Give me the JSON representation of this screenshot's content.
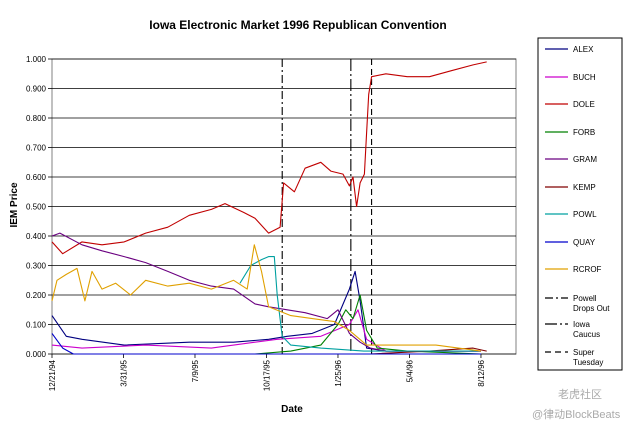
{
  "chart_data": {
    "type": "line",
    "title": "Iowa Electronic Market 1996 Republican Convention",
    "xlabel": "Date",
    "ylabel": "IEM Price",
    "ylim": [
      0,
      1.0
    ],
    "y_ticks": [
      "0.000",
      "0.100",
      "0.200",
      "0.300",
      "0.400",
      "0.500",
      "0.600",
      "0.700",
      "0.800",
      "0.900",
      "1.000"
    ],
    "x_range": [
      "1994-12-21",
      "1996-09-30"
    ],
    "x_ticks": [
      {
        "label": "12/21/94",
        "date": "1994-12-21"
      },
      {
        "label": "3/31/95",
        "date": "1995-03-31"
      },
      {
        "label": "7/9/95",
        "date": "1995-07-09"
      },
      {
        "label": "10/17/95",
        "date": "1995-10-17"
      },
      {
        "label": "1/25/96",
        "date": "1996-01-25"
      },
      {
        "label": "5/4/96",
        "date": "1996-05-04"
      },
      {
        "label": "8/12/96",
        "date": "1996-08-12"
      }
    ],
    "grid": "horizontal",
    "legend_position": "right",
    "series": [
      {
        "name": "ALEX",
        "color": "#000080",
        "points": [
          [
            "1994-12-21",
            0.13
          ],
          [
            "1995-01-10",
            0.06
          ],
          [
            "1995-02-01",
            0.05
          ],
          [
            "1995-04-01",
            0.03
          ],
          [
            "1995-07-01",
            0.04
          ],
          [
            "1995-09-01",
            0.04
          ],
          [
            "1995-10-20",
            0.05
          ],
          [
            "1995-11-15",
            0.06
          ],
          [
            "1995-12-20",
            0.07
          ],
          [
            "1996-01-20",
            0.1
          ],
          [
            "1996-02-10",
            0.22
          ],
          [
            "1996-02-18",
            0.28
          ],
          [
            "1996-02-25",
            0.18
          ],
          [
            "1996-03-05",
            0.02
          ],
          [
            "1996-04-01",
            0.01
          ],
          [
            "1996-08-12",
            0.01
          ]
        ]
      },
      {
        "name": "BUCH",
        "color": "#cc00cc",
        "points": [
          [
            "1994-12-21",
            0.03
          ],
          [
            "1995-02-01",
            0.02
          ],
          [
            "1995-05-01",
            0.03
          ],
          [
            "1995-08-01",
            0.02
          ],
          [
            "1995-10-01",
            0.04
          ],
          [
            "1995-11-01",
            0.05
          ],
          [
            "1996-01-01",
            0.06
          ],
          [
            "1996-02-10",
            0.1
          ],
          [
            "1996-02-22",
            0.15
          ],
          [
            "1996-03-05",
            0.05
          ],
          [
            "1996-04-01",
            0.01
          ],
          [
            "1996-08-12",
            0.01
          ]
        ]
      },
      {
        "name": "DOLE",
        "color": "#c00000",
        "points": [
          [
            "1994-12-21",
            0.38
          ],
          [
            "1995-01-05",
            0.34
          ],
          [
            "1995-02-01",
            0.38
          ],
          [
            "1995-03-01",
            0.37
          ],
          [
            "1995-04-01",
            0.38
          ],
          [
            "1995-05-01",
            0.41
          ],
          [
            "1995-06-01",
            0.43
          ],
          [
            "1995-07-01",
            0.47
          ],
          [
            "1995-08-01",
            0.49
          ],
          [
            "1995-08-20",
            0.51
          ],
          [
            "1995-09-15",
            0.48
          ],
          [
            "1995-10-01",
            0.46
          ],
          [
            "1995-10-20",
            0.41
          ],
          [
            "1995-11-05",
            0.43
          ],
          [
            "1995-11-10",
            0.58
          ],
          [
            "1995-11-25",
            0.55
          ],
          [
            "1995-12-10",
            0.63
          ],
          [
            "1996-01-01",
            0.65
          ],
          [
            "1996-01-15",
            0.62
          ],
          [
            "1996-02-01",
            0.61
          ],
          [
            "1996-02-10",
            0.57
          ],
          [
            "1996-02-15",
            0.6
          ],
          [
            "1996-02-20",
            0.5
          ],
          [
            "1996-02-25",
            0.58
          ],
          [
            "1996-03-02",
            0.61
          ],
          [
            "1996-03-05",
            0.75
          ],
          [
            "1996-03-08",
            0.88
          ],
          [
            "1996-03-12",
            0.94
          ],
          [
            "1996-04-01",
            0.95
          ],
          [
            "1996-05-01",
            0.94
          ],
          [
            "1996-06-01",
            0.94
          ],
          [
            "1996-07-01",
            0.96
          ],
          [
            "1996-08-01",
            0.98
          ],
          [
            "1996-08-20",
            0.99
          ]
        ]
      },
      {
        "name": "FORB",
        "color": "#008000",
        "points": [
          [
            "1995-10-01",
            0.0
          ],
          [
            "1995-11-20",
            0.01
          ],
          [
            "1996-01-01",
            0.03
          ],
          [
            "1996-01-25",
            0.1
          ],
          [
            "1996-02-05",
            0.15
          ],
          [
            "1996-02-15",
            0.12
          ],
          [
            "1996-02-25",
            0.2
          ],
          [
            "1996-03-05",
            0.08
          ],
          [
            "1996-03-20",
            0.02
          ],
          [
            "1996-05-01",
            0.01
          ],
          [
            "1996-08-12",
            0.0
          ]
        ]
      },
      {
        "name": "GRAM",
        "color": "#6a0080",
        "points": [
          [
            "1994-12-21",
            0.4
          ],
          [
            "1995-01-01",
            0.41
          ],
          [
            "1995-02-01",
            0.37
          ],
          [
            "1995-03-01",
            0.35
          ],
          [
            "1995-04-01",
            0.33
          ],
          [
            "1995-05-01",
            0.31
          ],
          [
            "1995-06-01",
            0.28
          ],
          [
            "1995-07-01",
            0.25
          ],
          [
            "1995-08-01",
            0.23
          ],
          [
            "1995-09-01",
            0.22
          ],
          [
            "1995-10-01",
            0.17
          ],
          [
            "1995-10-20",
            0.16
          ],
          [
            "1995-11-15",
            0.15
          ],
          [
            "1995-12-10",
            0.14
          ],
          [
            "1996-01-10",
            0.12
          ],
          [
            "1996-01-25",
            0.15
          ],
          [
            "1996-02-10",
            0.07
          ],
          [
            "1996-02-25",
            0.04
          ],
          [
            "1996-03-10",
            0.02
          ],
          [
            "1996-04-01",
            0.01
          ],
          [
            "1996-08-12",
            0.01
          ]
        ]
      },
      {
        "name": "KEMP",
        "color": "#800000",
        "points": [
          [
            "1996-03-10",
            0.0
          ],
          [
            "1996-06-01",
            0.01
          ],
          [
            "1996-08-01",
            0.02
          ],
          [
            "1996-08-20",
            0.01
          ]
        ]
      },
      {
        "name": "POWL",
        "color": "#00a0a0",
        "points": [
          [
            "1995-09-10",
            0.24
          ],
          [
            "1995-09-25",
            0.3
          ],
          [
            "1995-10-10",
            0.32
          ],
          [
            "1995-10-20",
            0.33
          ],
          [
            "1995-10-28",
            0.33
          ],
          [
            "1995-11-01",
            0.2
          ],
          [
            "1995-11-08",
            0.06
          ],
          [
            "1995-11-20",
            0.03
          ],
          [
            "1996-01-01",
            0.02
          ],
          [
            "1996-03-01",
            0.01
          ],
          [
            "1996-08-12",
            0.01
          ]
        ]
      },
      {
        "name": "QUAY",
        "color": "#0000cc",
        "points": [
          [
            "1994-12-21",
            0.07
          ],
          [
            "1995-01-05",
            0.02
          ],
          [
            "1995-01-20",
            0.0
          ],
          [
            "1996-08-12",
            0.0
          ]
        ]
      },
      {
        "name": "RCROF",
        "color": "#e0a000",
        "points": [
          [
            "1994-12-21",
            0.18
          ],
          [
            "1994-12-28",
            0.25
          ],
          [
            "1995-01-10",
            0.27
          ],
          [
            "1995-01-25",
            0.29
          ],
          [
            "1995-02-05",
            0.18
          ],
          [
            "1995-02-15",
            0.28
          ],
          [
            "1995-03-01",
            0.22
          ],
          [
            "1995-03-20",
            0.24
          ],
          [
            "1995-04-10",
            0.2
          ],
          [
            "1995-05-01",
            0.25
          ],
          [
            "1995-06-01",
            0.23
          ],
          [
            "1995-07-01",
            0.24
          ],
          [
            "1995-08-01",
            0.22
          ],
          [
            "1995-09-01",
            0.25
          ],
          [
            "1995-09-20",
            0.22
          ],
          [
            "1995-09-30",
            0.37
          ],
          [
            "1995-10-10",
            0.28
          ],
          [
            "1995-10-20",
            0.16
          ],
          [
            "1995-11-20",
            0.13
          ],
          [
            "1995-12-20",
            0.12
          ],
          [
            "1996-01-20",
            0.11
          ],
          [
            "1996-02-10",
            0.08
          ],
          [
            "1996-03-05",
            0.03
          ],
          [
            "1996-05-01",
            0.03
          ],
          [
            "1996-06-10",
            0.03
          ],
          [
            "1996-08-12",
            0.01
          ]
        ]
      }
    ],
    "event_lines": [
      {
        "name": "Powell Drops Out",
        "date": "1995-11-08",
        "dash": "8 3 2 3"
      },
      {
        "name": "Iowa Caucus",
        "date": "1996-02-12",
        "dash": "12 3 2 3"
      },
      {
        "name": "Super Tuesday",
        "date": "1996-03-12",
        "dash": "6 4"
      }
    ]
  },
  "legend": {
    "items": [
      {
        "label": "ALEX"
      },
      {
        "label": "BUCH"
      },
      {
        "label": "DOLE"
      },
      {
        "label": "FORB"
      },
      {
        "label": "GRAM"
      },
      {
        "label": "KEMP"
      },
      {
        "label": "POWL"
      },
      {
        "label": "QUAY"
      },
      {
        "label": "RCROF"
      },
      {
        "label_lines": [
          "Powell",
          "Drops Out"
        ]
      },
      {
        "label_lines": [
          "Iowa",
          "Caucus"
        ]
      },
      {
        "label_lines": [
          "Super",
          "Tuesday"
        ]
      }
    ]
  },
  "watermark": {
    "line1": "老虎社区",
    "line2": "@律动BlockBeats"
  }
}
